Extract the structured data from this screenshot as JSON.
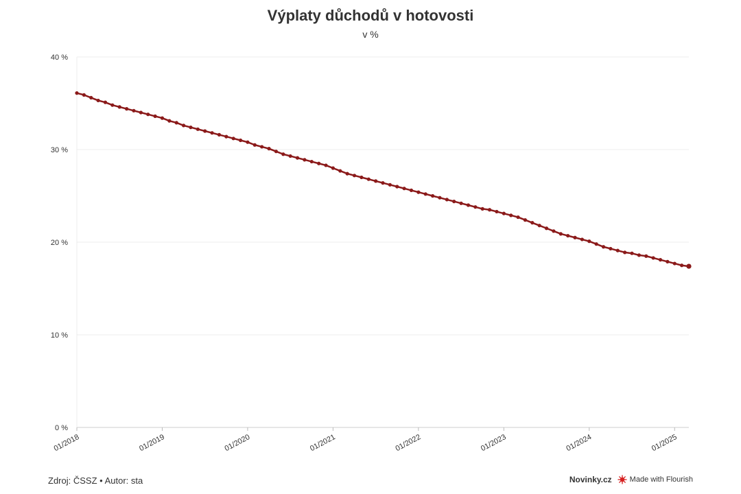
{
  "chart_data": {
    "type": "line",
    "title": "Výplaty důchodů v hotovosti",
    "subtitle": "v %",
    "xlabel": "",
    "ylabel": "",
    "ylim": [
      0,
      40
    ],
    "y_ticks": [
      "0 %",
      "10 %",
      "20 %",
      "30 %",
      "40 %"
    ],
    "y_tick_values": [
      0,
      10,
      20,
      30,
      40
    ],
    "x_ticks": [
      "01/2018",
      "01/2019",
      "01/2020",
      "01/2021",
      "01/2022",
      "01/2023",
      "01/2024",
      "01/2025"
    ],
    "x_start": "01/2018",
    "x_end": "03/2025",
    "grid": true,
    "series": [
      {
        "color": "#8b1a1a",
        "x": [
          "01/2018",
          "02/2018",
          "03/2018",
          "04/2018",
          "05/2018",
          "06/2018",
          "07/2018",
          "08/2018",
          "09/2018",
          "10/2018",
          "11/2018",
          "12/2018",
          "01/2019",
          "02/2019",
          "03/2019",
          "04/2019",
          "05/2019",
          "06/2019",
          "07/2019",
          "08/2019",
          "09/2019",
          "10/2019",
          "11/2019",
          "12/2019",
          "01/2020",
          "02/2020",
          "03/2020",
          "04/2020",
          "05/2020",
          "06/2020",
          "07/2020",
          "08/2020",
          "09/2020",
          "10/2020",
          "11/2020",
          "12/2020",
          "01/2021",
          "02/2021",
          "03/2021",
          "04/2021",
          "05/2021",
          "06/2021",
          "07/2021",
          "08/2021",
          "09/2021",
          "10/2021",
          "11/2021",
          "12/2021",
          "01/2022",
          "02/2022",
          "03/2022",
          "04/2022",
          "05/2022",
          "06/2022",
          "07/2022",
          "08/2022",
          "09/2022",
          "10/2022",
          "11/2022",
          "12/2022",
          "01/2023",
          "02/2023",
          "03/2023",
          "04/2023",
          "05/2023",
          "06/2023",
          "07/2023",
          "08/2023",
          "09/2023",
          "10/2023",
          "11/2023",
          "12/2023",
          "01/2024",
          "02/2024",
          "03/2024",
          "04/2024",
          "05/2024",
          "06/2024",
          "07/2024",
          "08/2024",
          "09/2024",
          "10/2024",
          "11/2024",
          "12/2024",
          "01/2025",
          "02/2025",
          "03/2025"
        ],
        "values": [
          36.1,
          35.9,
          35.6,
          35.3,
          35.1,
          34.8,
          34.6,
          34.4,
          34.2,
          34.0,
          33.8,
          33.6,
          33.4,
          33.1,
          32.9,
          32.6,
          32.4,
          32.2,
          32.0,
          31.8,
          31.6,
          31.4,
          31.2,
          31.0,
          30.8,
          30.5,
          30.3,
          30.1,
          29.8,
          29.5,
          29.3,
          29.1,
          28.9,
          28.7,
          28.5,
          28.3,
          28.0,
          27.7,
          27.4,
          27.2,
          27.0,
          26.8,
          26.6,
          26.4,
          26.2,
          26.0,
          25.8,
          25.6,
          25.4,
          25.2,
          25.0,
          24.8,
          24.6,
          24.4,
          24.2,
          24.0,
          23.8,
          23.6,
          23.5,
          23.3,
          23.1,
          22.9,
          22.7,
          22.4,
          22.1,
          21.8,
          21.5,
          21.2,
          20.9,
          20.7,
          20.5,
          20.3,
          20.1,
          19.8,
          19.5,
          19.3,
          19.1,
          18.9,
          18.8,
          18.6,
          18.5,
          18.3,
          18.1,
          17.9,
          17.7,
          17.5,
          17.4
        ]
      }
    ]
  },
  "footer": {
    "source": "Zdroj: ČSSZ • Autor: sta",
    "brand": "Novinky.cz",
    "made_with": "Made with Flourish"
  }
}
